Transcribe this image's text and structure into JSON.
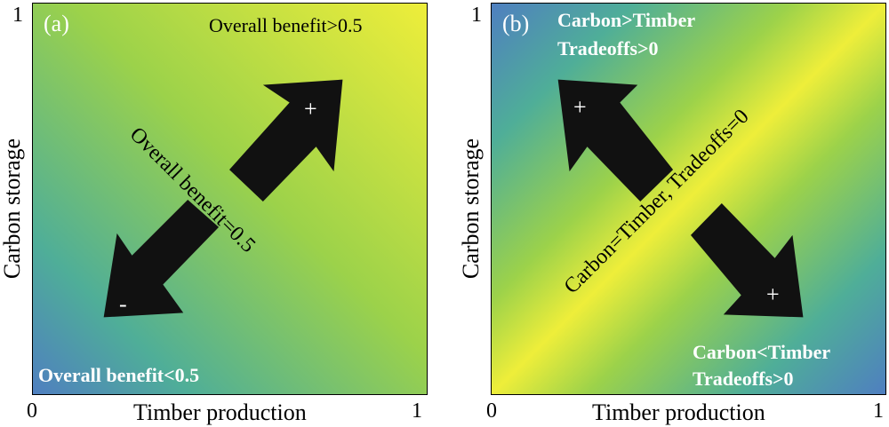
{
  "panel_a": {
    "label": "(a)",
    "top_right_text": "Overall benefit>0.5",
    "bottom_left_text": "Overall benefit<0.5",
    "diagonal_text": "Overall benefit=0.5",
    "plus_sign": "+",
    "minus_sign": "-",
    "x_axis_label": "Timber production",
    "y_axis_label": "Carbon storage",
    "x_tick_min": "0",
    "x_tick_max": "1",
    "y_tick_max": "1"
  },
  "panel_b": {
    "label": "(b)",
    "top_left_text_line1": "Carbon>Timber",
    "top_left_text_line2": "Tradeoffs>0",
    "bottom_right_text_line1": "Carbon<Timber",
    "bottom_right_text_line2": "Tradeoffs>0",
    "diagonal_text": "Carbon=Timber, Tradeoffs=0",
    "plus_sign_upper": "+",
    "plus_sign_lower": "+",
    "x_axis_label": "Timber production",
    "y_axis_label": "Carbon storage",
    "x_tick_min": "0",
    "x_tick_max": "1",
    "y_tick_max": "1"
  },
  "colors": {
    "blue": "#4f7fc0",
    "teal": "#4fae98",
    "green": "#9cd24a",
    "yellow": "#eeee3a",
    "arrow": "#111111"
  }
}
